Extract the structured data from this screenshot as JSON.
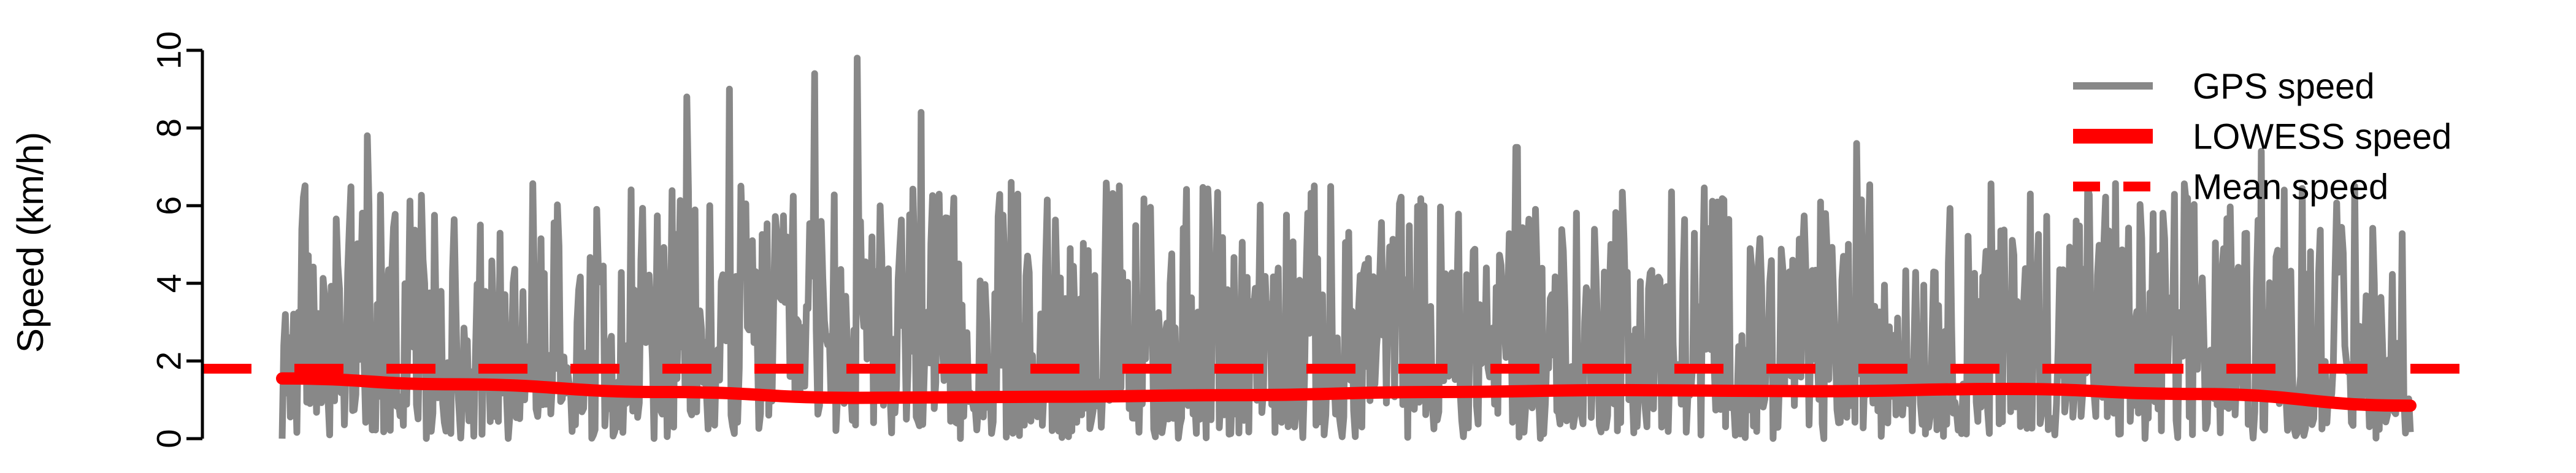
{
  "chart_data": {
    "type": "line",
    "title": "",
    "xlabel": "",
    "ylabel": "Speed (km/h)",
    "ylim": [
      0,
      10
    ],
    "y_ticks": [
      "0",
      "2",
      "4",
      "6",
      "8",
      "10"
    ],
    "x_axis_visible": false,
    "grid": false,
    "legend_position": "top-right",
    "legend_entries": [
      "GPS speed",
      "LOWESS speed",
      "Mean speed"
    ],
    "series": [
      {
        "name": "GPS speed",
        "style": "solid",
        "color": "#888888",
        "n_samples": 1300,
        "peaks": [
          7.8,
          9.0,
          9.4,
          9.8,
          8.4,
          8.8,
          7.5,
          7.4,
          7.6
        ],
        "typical_range": [
          0,
          6.5
        ]
      },
      {
        "name": "LOWESS speed",
        "style": "solid",
        "color": "#ff0000",
        "x": [
          0,
          0.08,
          0.18,
          0.27,
          0.36,
          0.45,
          0.54,
          0.63,
          0.72,
          0.81,
          0.9,
          1.0
        ],
        "values": [
          1.55,
          1.4,
          1.2,
          1.05,
          1.08,
          1.12,
          1.2,
          1.25,
          1.22,
          1.28,
          1.15,
          0.85
        ]
      },
      {
        "name": "Mean speed",
        "style": "dashed",
        "color": "#ff0000",
        "value": 1.8
      }
    ]
  }
}
